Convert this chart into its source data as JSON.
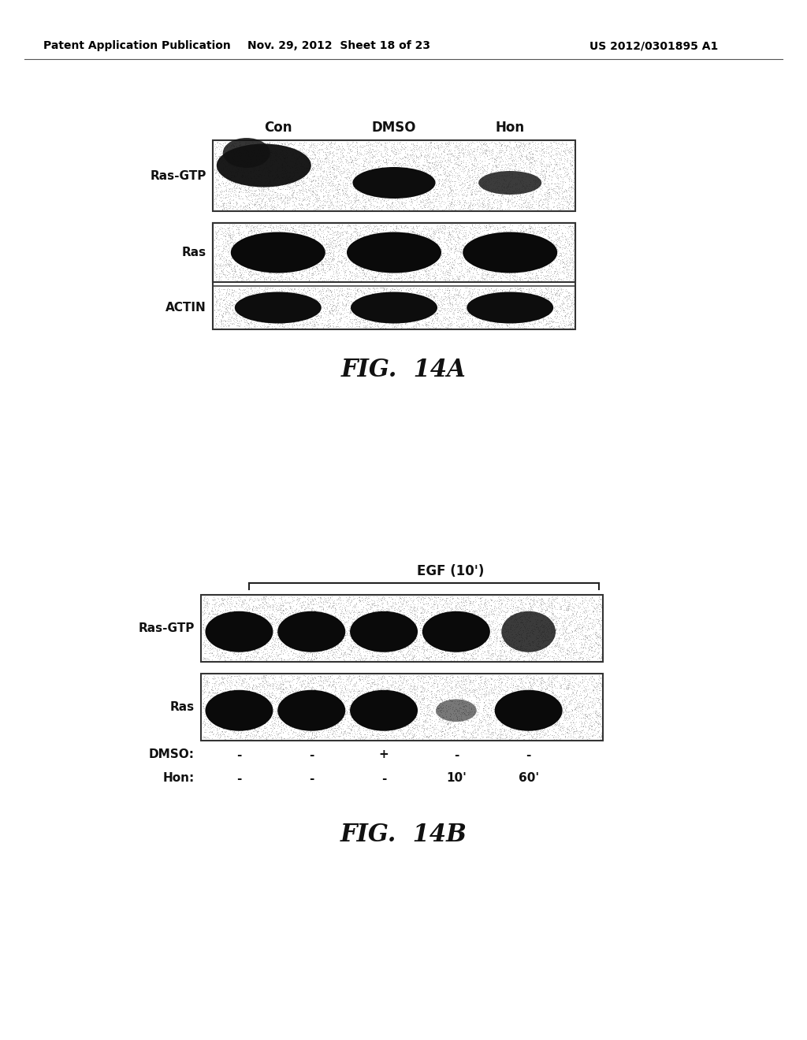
{
  "header_left": "Patent Application Publication",
  "header_mid": "Nov. 29, 2012  Sheet 18 of 23",
  "header_right": "US 2012/0301895 A1",
  "fig14a": {
    "title": "FIG.  14A",
    "col_labels": [
      "Con",
      "DMSO",
      "Hon"
    ],
    "row_labels": [
      "Ras-GTP",
      "Ras",
      "ACTIN"
    ]
  },
  "fig14b": {
    "title": "FIG.  14B",
    "egf_label": "EGF (10')",
    "row_labels": [
      "Ras-GTP",
      "Ras"
    ],
    "bottom_labels_dmso": [
      "DMSO:",
      "-",
      "-",
      "+",
      "-",
      "-"
    ],
    "bottom_labels_hon": [
      "Hon:",
      "-",
      "-",
      "-",
      "10'",
      "60'"
    ]
  },
  "bg_color": "#ffffff",
  "stipple_color": "#aaaaaa",
  "band_color": "#0d0d0d",
  "border_color": "#333333"
}
